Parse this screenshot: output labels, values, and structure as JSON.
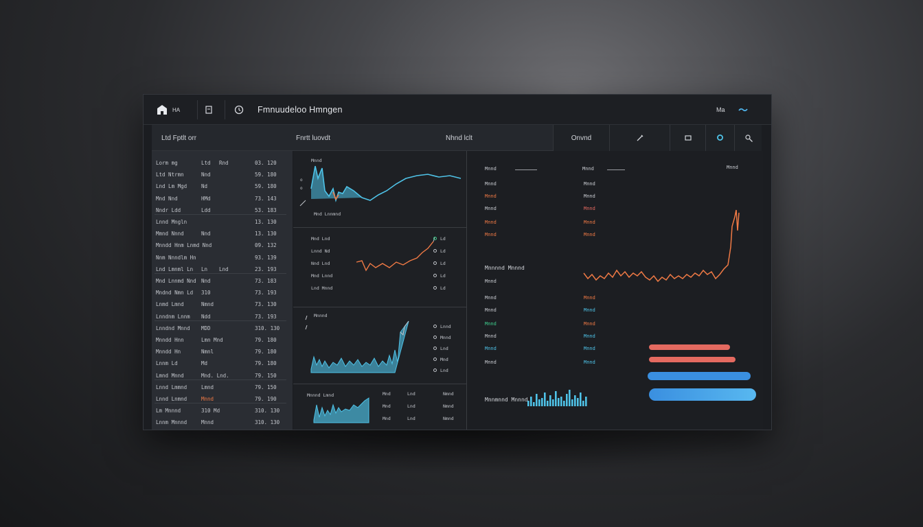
{
  "titlebar": {
    "logo_label": "HA",
    "app_title": "Fmnuudeloo Hmngen",
    "right_label": "Ma"
  },
  "toolbar": {
    "left_label": "Ltd Fptlt orr",
    "mid_label": "Fnrtt luovdt",
    "center_label": "Nhnd lclt",
    "button_label": "Onvnd",
    "icon_label": "M"
  },
  "left_panel": {
    "rows": [
      [
        "Lorm mg",
        "Ltd",
        "Rnd",
        "03. 120"
      ],
      [
        "Ltd Ntrmn",
        "Nnd",
        "",
        "59. 180"
      ],
      [
        "Lnd Lm Mgd",
        "Nd",
        "",
        "59. 180"
      ],
      [
        "Mnd Nnd",
        "HMd",
        "",
        "73. 143"
      ],
      [
        "Nndr Ldd",
        "Ldd",
        "",
        "53. 183"
      ],
      [
        "Lnnd Mngln",
        "",
        "",
        "13. 130"
      ],
      [
        "Mmnd Nnnd",
        "Nnd",
        "",
        "13. 130"
      ],
      [
        "Mnndd Hnm Lnmd Nnd",
        "",
        "",
        "09. 132"
      ],
      [
        "Nnm Nnndlm Hn",
        "",
        "",
        "93. 139"
      ],
      [
        "Lnd Lmnml Ln",
        "Ln",
        "Lnd",
        "23. 193"
      ],
      [
        "Mnd Lnnmd Nnd",
        "Nnd",
        "",
        "73. 183"
      ],
      [
        "Mndnd Nmn Ld",
        "310",
        "",
        "73. 193"
      ],
      [
        "Lnmd Lmnd",
        "Nmnd",
        "",
        "73. 130"
      ],
      [
        "Lnndnm Lnnm",
        "Ndd",
        "",
        "73. 193"
      ],
      [
        "Lnndnd Mnnd",
        "MDD",
        "",
        "310. 130"
      ],
      [
        "Mnndd Hnn",
        "Lmn Mnd",
        "",
        "79. 180"
      ],
      [
        "Mnndd Hn",
        "Nmnl",
        "",
        "79. 180"
      ],
      [
        "Lnnm Ld",
        "Md",
        "",
        "79. 180"
      ],
      [
        "Lmnd Mnnd",
        "Mnd. Lnd.",
        "",
        "79. 150"
      ],
      [
        "Lnnd Lmmnd",
        "Lmnd",
        "",
        "79. 150"
      ],
      [
        "Lnnd Lnmnd",
        "Mnnd",
        "",
        "79. 190"
      ],
      [
        "Lm Mnnnd",
        "310 Md",
        "",
        "310. 130"
      ],
      [
        "Lnnm Mnnnd",
        "Mnnd",
        "",
        "310. 130"
      ]
    ]
  },
  "middle": {
    "chart1_title": "Mnnd",
    "chart1_caption": "Mnd  Lnnmnd",
    "chart2_rows": [
      [
        "Mnd Lnd",
        "Ld"
      ],
      [
        "Lnnd Nd",
        "Ld"
      ],
      [
        "Nnd Lnd",
        "Ld"
      ],
      [
        "Mnd Lnnd",
        "Ld"
      ],
      [
        "Lnd Mnnd",
        "Ld"
      ]
    ],
    "chart3_title": "Mnnnd",
    "chart3_rows": [
      "Lnnd",
      "Mnnd",
      "Lnd",
      "Mnd",
      "Lnd"
    ],
    "chart4_title": "Mnnnd Lmnd",
    "chart4_cols": [
      "Mnd",
      "Lnd",
      "Nmnd"
    ]
  },
  "right_panel": {
    "col1_header": "Mnnd",
    "col2_header": "Mnnd",
    "corner_label": "Mnnd",
    "section_label": "Mnnnnd Mnnnd",
    "footer_label": "Mnnmnnd Mnnnd",
    "colors": {
      "orange": "#f07a45",
      "cyan": "#4fc3e8",
      "blue": "#3a8fe0",
      "green": "#3fcf8e",
      "salmon": "#e46a60"
    }
  }
}
